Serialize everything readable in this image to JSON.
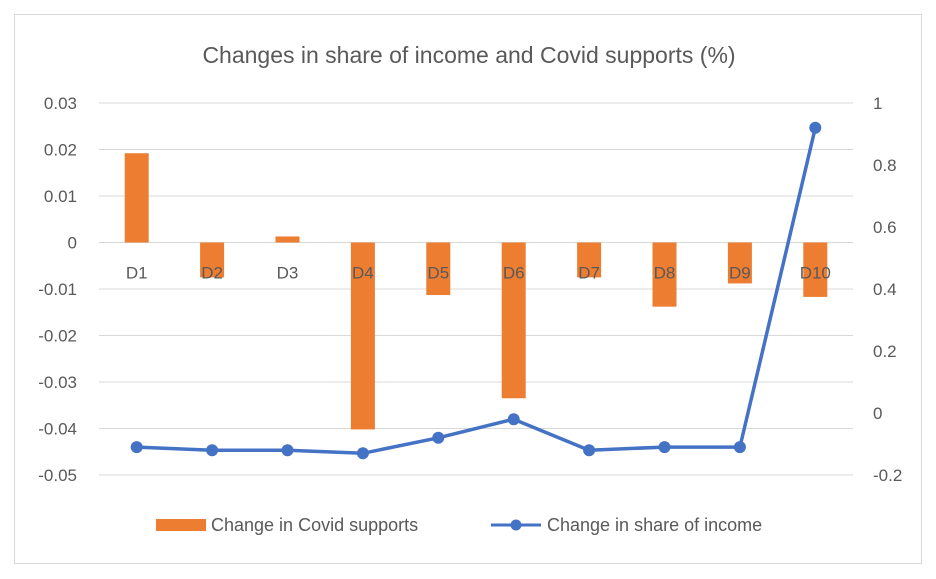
{
  "chart_data": {
    "type": "bar+line",
    "title": "Changes in share of income and Covid supports (%)",
    "categories": [
      "D1",
      "D2",
      "D3",
      "D4",
      "D5",
      "D6",
      "D7",
      "D8",
      "D9",
      "D10"
    ],
    "series": [
      {
        "name": "Change in Covid supports",
        "type": "bar",
        "axis": "left",
        "color": "#ED7D31",
        "values": [
          0.0192,
          -0.0075,
          0.0013,
          -0.0402,
          -0.0113,
          -0.0335,
          -0.0075,
          -0.0138,
          -0.0088,
          -0.0117
        ]
      },
      {
        "name": "Change in share of income",
        "type": "line",
        "axis": "right",
        "color": "#4472C4",
        "values": [
          -0.11,
          -0.12,
          -0.12,
          -0.13,
          -0.08,
          -0.02,
          -0.12,
          -0.11,
          -0.11,
          0.92
        ]
      }
    ],
    "y_left": {
      "min": -0.05,
      "max": 0.03,
      "step": 0.01,
      "ticks": [
        "0.03",
        "0.02",
        "0.01",
        "0",
        "-0.01",
        "-0.02",
        "-0.03",
        "-0.04",
        "-0.05"
      ]
    },
    "y_right": {
      "min": -0.2,
      "max": 1.0,
      "step": 0.2,
      "ticks": [
        "1",
        "0.8",
        "0.6",
        "0.4",
        "0.2",
        "0",
        "-0.2"
      ]
    },
    "grid": true,
    "legend": "bottom"
  }
}
